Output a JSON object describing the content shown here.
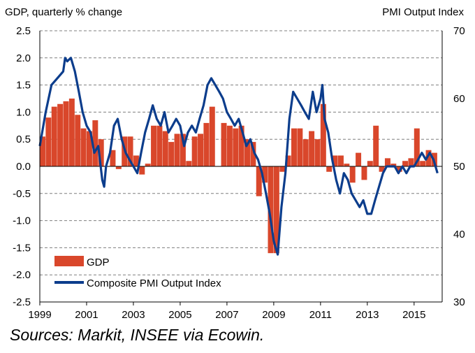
{
  "chart_data": {
    "type": "bar+line",
    "left_axis_label": "GDP, quarterly % change",
    "right_axis_label": "PMI Output  Index",
    "left_ylim": [
      -2.5,
      2.5
    ],
    "left_ticks": [
      "2.5",
      "2.0",
      "1.5",
      "1.0",
      "0.5",
      "0.0",
      "-0.5",
      "-1.0",
      "-1.5",
      "-2.0",
      "-2.5"
    ],
    "right_ylim": [
      30,
      70
    ],
    "right_ticks": [
      "70",
      "60",
      "50",
      "40",
      "30"
    ],
    "x_range": [
      1999,
      2016.2
    ],
    "x_ticks": [
      "1999",
      "2001",
      "2003",
      "2005",
      "2007",
      "2009",
      "2011",
      "2013",
      "2015"
    ],
    "grid": true,
    "legend_position": "bottom-left",
    "series": [
      {
        "name": "GDP",
        "kind": "bar",
        "color": "#d9472b",
        "x": [
          1999.0,
          1999.25,
          1999.5,
          1999.75,
          2000.0,
          2000.25,
          2000.5,
          2000.75,
          2001.0,
          2001.25,
          2001.5,
          2001.75,
          2002.0,
          2002.25,
          2002.5,
          2002.75,
          2003.0,
          2003.25,
          2003.5,
          2003.75,
          2004.0,
          2004.25,
          2004.5,
          2004.75,
          2005.0,
          2005.25,
          2005.5,
          2005.75,
          2006.0,
          2006.25,
          2006.5,
          2006.75,
          2007.0,
          2007.25,
          2007.5,
          2007.75,
          2008.0,
          2008.25,
          2008.5,
          2008.75,
          2009.0,
          2009.25,
          2009.5,
          2009.75,
          2010.0,
          2010.25,
          2010.5,
          2010.75,
          2011.0,
          2011.25,
          2011.5,
          2011.75,
          2012.0,
          2012.25,
          2012.5,
          2012.75,
          2013.0,
          2013.25,
          2013.5,
          2013.75,
          2014.0,
          2014.25,
          2014.5,
          2014.75,
          2015.0,
          2015.25,
          2015.5,
          2015.75
        ],
        "values": [
          0.55,
          0.9,
          1.1,
          1.15,
          1.2,
          1.25,
          0.95,
          0.7,
          0.65,
          0.85,
          0.5,
          0.0,
          0.3,
          -0.05,
          0.55,
          0.55,
          0.2,
          -0.15,
          0.05,
          0.75,
          0.75,
          0.65,
          0.45,
          0.6,
          0.6,
          0.1,
          0.55,
          0.6,
          0.8,
          1.1,
          0.0,
          0.8,
          0.75,
          0.7,
          0.75,
          0.5,
          0.45,
          -0.55,
          -0.3,
          -1.6,
          -1.6,
          -0.1,
          0.2,
          0.7,
          0.7,
          0.5,
          0.65,
          0.5,
          1.15,
          -0.1,
          0.2,
          0.2,
          0.05,
          -0.3,
          0.25,
          -0.25,
          0.1,
          0.75,
          -0.1,
          0.15,
          0.05,
          -0.1,
          0.1,
          0.15,
          0.7,
          0.1,
          0.3,
          0.25
        ]
      },
      {
        "name": "Composite PMI Output Index",
        "kind": "line",
        "axis": "right",
        "color": "#0c3d8c",
        "x": [
          1999.0,
          1999.25,
          1999.5,
          1999.75,
          2000.0,
          2000.08,
          2000.17,
          2000.33,
          2000.5,
          2000.67,
          2000.83,
          2001.0,
          2001.17,
          2001.33,
          2001.5,
          2001.67,
          2001.75,
          2001.83,
          2002.0,
          2002.17,
          2002.33,
          2002.5,
          2002.67,
          2002.83,
          2003.0,
          2003.17,
          2003.33,
          2003.5,
          2003.67,
          2003.83,
          2004.0,
          2004.17,
          2004.33,
          2004.5,
          2004.67,
          2004.83,
          2005.0,
          2005.17,
          2005.33,
          2005.5,
          2005.67,
          2005.83,
          2006.0,
          2006.17,
          2006.33,
          2006.5,
          2006.67,
          2006.83,
          2007.0,
          2007.17,
          2007.33,
          2007.5,
          2007.67,
          2007.83,
          2008.0,
          2008.17,
          2008.33,
          2008.5,
          2008.67,
          2008.83,
          2009.0,
          2009.08,
          2009.17,
          2009.33,
          2009.5,
          2009.67,
          2009.83,
          2010.0,
          2010.17,
          2010.33,
          2010.5,
          2010.67,
          2010.83,
          2011.0,
          2011.08,
          2011.17,
          2011.33,
          2011.5,
          2011.67,
          2011.83,
          2012.0,
          2012.17,
          2012.33,
          2012.5,
          2012.67,
          2012.83,
          2013.0,
          2013.17,
          2013.33,
          2013.5,
          2013.67,
          2013.83,
          2014.0,
          2014.17,
          2014.33,
          2014.5,
          2014.67,
          2014.83,
          2015.0,
          2015.17,
          2015.33,
          2015.5,
          2015.67,
          2015.83,
          2016.0
        ],
        "values": [
          53,
          58,
          62,
          63,
          64,
          66,
          65.5,
          66,
          64,
          61,
          58,
          56,
          55,
          52,
          53,
          48,
          47,
          50,
          52,
          56,
          57,
          54,
          52,
          51,
          50,
          49,
          52,
          55,
          57,
          59,
          57,
          56,
          58,
          55,
          56,
          57,
          56,
          53,
          55,
          56,
          55,
          57,
          59,
          62,
          63,
          62,
          61,
          60,
          58,
          57,
          56,
          57,
          55,
          53,
          54,
          52,
          51,
          49,
          46,
          43,
          39,
          38,
          37,
          44,
          49,
          57,
          61,
          60,
          59,
          58,
          57,
          61,
          58,
          60,
          62,
          57,
          55,
          51,
          48,
          46,
          49,
          48,
          46,
          45,
          44,
          45,
          43,
          43,
          45,
          47,
          49,
          50,
          50,
          50,
          49,
          50,
          49,
          50,
          50,
          51,
          52,
          51,
          52,
          51,
          49
        ]
      }
    ]
  },
  "source_text": "Sources: Markit, INSEE via Ecowin."
}
